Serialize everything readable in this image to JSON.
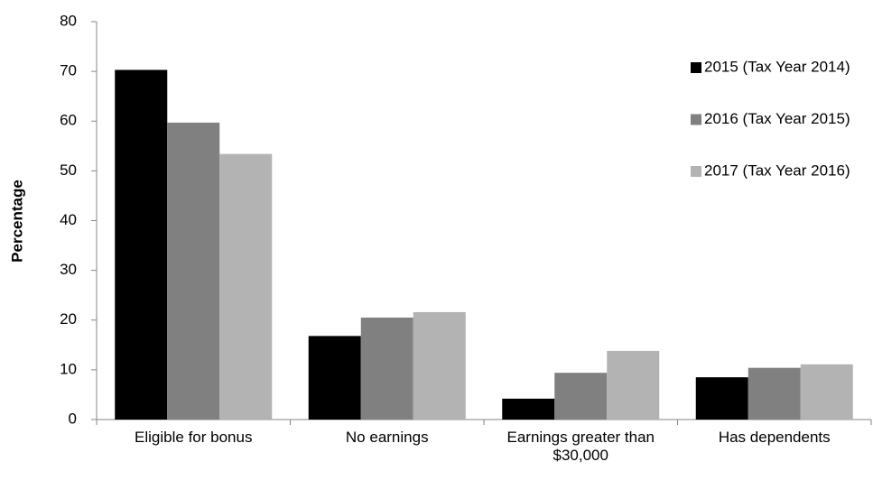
{
  "chart_data": {
    "type": "bar",
    "y_label": "Percentage",
    "categories": [
      "Eligible for bonus",
      "No earnings",
      "Earnings greater than $30,000",
      "Has dependents"
    ],
    "series": [
      {
        "name": "2015 (Tax Year 2014)",
        "color": "#000000",
        "values": [
          70.3,
          16.8,
          4.2,
          8.5
        ]
      },
      {
        "name": "2016 (Tax Year 2015)",
        "color": "#808080",
        "values": [
          59.7,
          20.5,
          9.4,
          10.4
        ]
      },
      {
        "name": "2017 (Tax Year 2016)",
        "color": "#b3b3b3",
        "values": [
          53.4,
          21.6,
          13.8,
          11.1
        ]
      }
    ],
    "ylim": [
      0,
      80
    ],
    "yticks": [
      0,
      10,
      20,
      30,
      40,
      50,
      60,
      70,
      80
    ],
    "grid": false,
    "legend": "right"
  }
}
